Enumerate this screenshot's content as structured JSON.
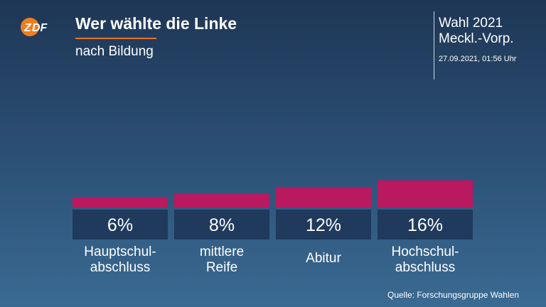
{
  "header": {
    "logo_text": "ZDF",
    "title": "Wer wählte die Linke",
    "subtitle": "nach Bildung",
    "election_line1": "Wahl 2021",
    "election_line2": "Meckl.-Vorp.",
    "timestamp": "27.09.2021, 01:56 Uhr"
  },
  "colors": {
    "bar": "#b8195f",
    "label_box": "#1f3a5c",
    "accent": "#e8741f",
    "logo": "#f07d1e"
  },
  "chart_data": {
    "type": "bar",
    "title": "Wer wählte die Linke",
    "subtitle": "nach Bildung",
    "categories": [
      [
        "Hauptschul-",
        "abschluss"
      ],
      [
        "mittlere",
        "Reife"
      ],
      [
        "Abitur"
      ],
      [
        "Hochschul-",
        "abschluss"
      ]
    ],
    "values": [
      6,
      8,
      12,
      16
    ],
    "value_labels": [
      "6%",
      "8%",
      "12%",
      "16%"
    ],
    "unit": "%",
    "grid": false
  },
  "footer": {
    "source": "Quelle: Forschungsgruppe Wahlen"
  }
}
